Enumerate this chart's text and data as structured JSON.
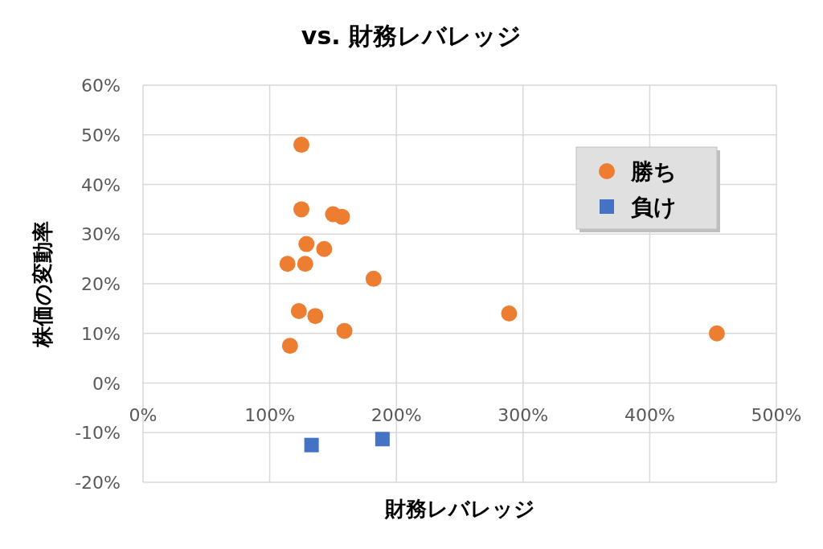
{
  "chart_data": {
    "type": "scatter",
    "title": "vs. 財務レバレッジ",
    "xlabel": "財務レバレッジ",
    "ylabel": "株価の変動率",
    "xlim": [
      0,
      500
    ],
    "ylim": [
      -20,
      60
    ],
    "xticks": [
      {
        "value": 0,
        "label": "0%"
      },
      {
        "value": 100,
        "label": "100%"
      },
      {
        "value": 200,
        "label": "200%"
      },
      {
        "value": 300,
        "label": "300%"
      },
      {
        "value": 400,
        "label": "400%"
      },
      {
        "value": 500,
        "label": "500%"
      }
    ],
    "yticks": [
      {
        "value": -20,
        "label": "-20%"
      },
      {
        "value": -10,
        "label": "-10%"
      },
      {
        "value": 0,
        "label": "0%"
      },
      {
        "value": 10,
        "label": "10%"
      },
      {
        "value": 20,
        "label": "20%"
      },
      {
        "value": 30,
        "label": "30%"
      },
      {
        "value": 40,
        "label": "40%"
      },
      {
        "value": 50,
        "label": "50%"
      },
      {
        "value": 60,
        "label": "60%"
      }
    ],
    "grid": true,
    "legend": "top right",
    "series": [
      {
        "name": "勝ち",
        "color": "#ed7d31",
        "marker": "circle",
        "x": [
          125,
          125,
          150,
          157,
          129,
          143,
          114,
          128,
          182,
          123,
          136,
          159,
          116,
          289,
          453
        ],
        "values": [
          48,
          35,
          34,
          33.5,
          28,
          27,
          24,
          24,
          21,
          14.5,
          13.5,
          10.5,
          7.5,
          14,
          10
        ]
      },
      {
        "name": "負け",
        "color": "#4472c4",
        "marker": "square",
        "x": [
          133,
          189
        ],
        "values": [
          -12.5,
          -11.3
        ]
      }
    ]
  }
}
